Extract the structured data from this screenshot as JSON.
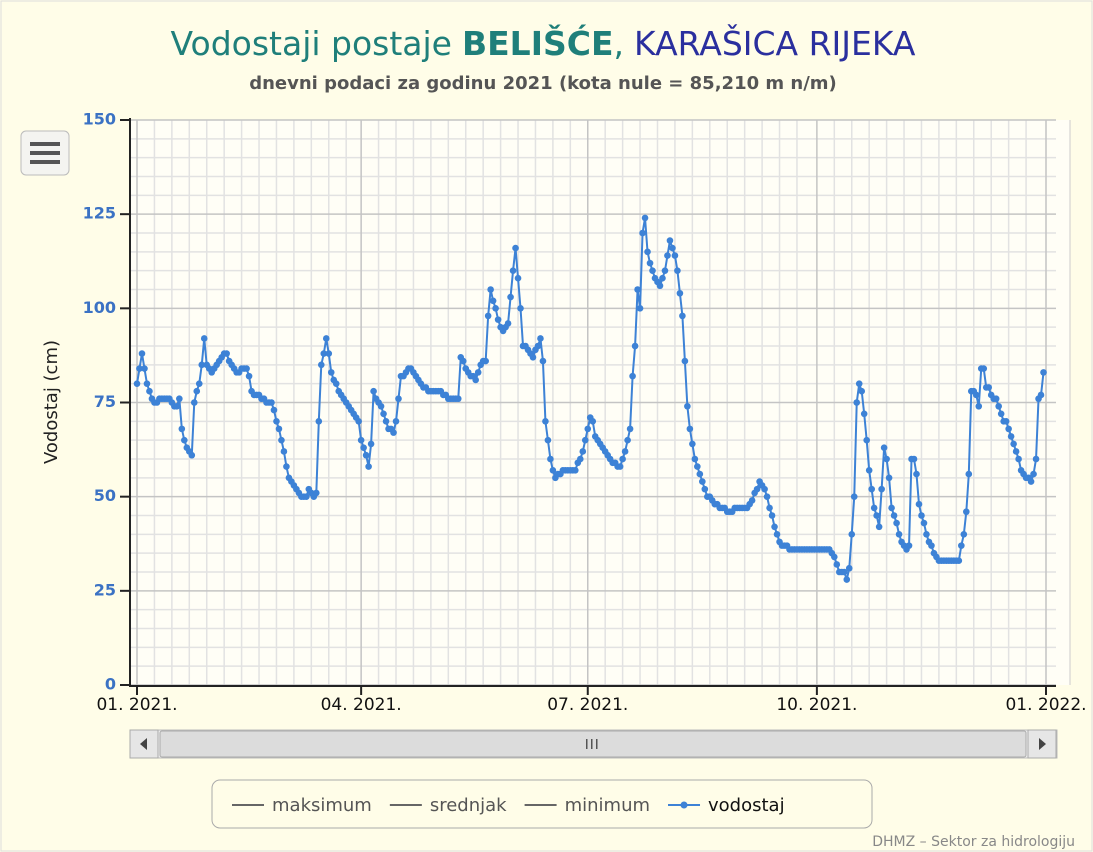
{
  "chart_data": {
    "type": "line",
    "title": {
      "lead": "Vodostaji postaje",
      "station": "BELIŠĆE",
      "separator": ",",
      "river": "KARAŠICA RIJEKA"
    },
    "subtitle": "dnevni podaci za godinu 2021 (kota nule = 85,210 m n/m)",
    "y_label": "Vodostaj (cm)",
    "credits": "DHMZ – Sektor za hidrologiju",
    "ylim": [
      0,
      150
    ],
    "yticks": [
      0,
      25,
      50,
      75,
      100,
      125,
      150
    ],
    "yminorticks": [
      5,
      10,
      15,
      20,
      30,
      35,
      40,
      45,
      55,
      60,
      65,
      70,
      80,
      85,
      90,
      95,
      105,
      110,
      115,
      120,
      130,
      135,
      140,
      145
    ],
    "xlim": [
      0,
      365
    ],
    "xticks": [
      {
        "value": 0,
        "label": "01. 2021."
      },
      {
        "value": 90,
        "label": "04. 2021."
      },
      {
        "value": 181,
        "label": "07. 2021."
      },
      {
        "value": 273,
        "label": "10. 2021."
      },
      {
        "value": 365,
        "label": "01. 2022."
      }
    ],
    "xminorticks": [
      7,
      14,
      21,
      28,
      35,
      42,
      49,
      56,
      63,
      70,
      77,
      84,
      97,
      104,
      111,
      118,
      125,
      132,
      139,
      146,
      153,
      160,
      167,
      174,
      188,
      195,
      202,
      209,
      216,
      223,
      230,
      237,
      244,
      251,
      258,
      265,
      280,
      287,
      294,
      301,
      308,
      315,
      322,
      329,
      336,
      343,
      350,
      357
    ],
    "grid": true,
    "series": [
      {
        "name": "maksimum",
        "color": "#666666",
        "values": null
      },
      {
        "name": "srednjak",
        "color": "#666666",
        "values": null
      },
      {
        "name": "minimum",
        "color": "#666666",
        "values": null
      },
      {
        "name": "vodostaj",
        "color": "#3d82d6",
        "values": [
          80,
          84,
          88,
          84,
          80,
          78,
          76,
          75,
          75,
          76,
          76,
          76,
          76,
          76,
          75,
          74,
          74,
          76,
          68,
          65,
          63,
          62,
          61,
          75,
          78,
          80,
          85,
          92,
          85,
          84,
          83,
          84,
          85,
          86,
          87,
          88,
          88,
          86,
          85,
          84,
          83,
          83,
          84,
          84,
          84,
          82,
          78,
          77,
          77,
          77,
          76,
          76,
          75,
          75,
          75,
          73,
          70,
          68,
          65,
          62,
          58,
          55,
          54,
          53,
          52,
          51,
          50,
          50,
          50,
          52,
          51,
          50,
          51,
          70,
          85,
          88,
          92,
          88,
          83,
          81,
          80,
          78,
          77,
          76,
          75,
          74,
          73,
          72,
          71,
          70,
          65,
          63,
          61,
          58,
          64,
          78,
          76,
          75,
          74,
          72,
          70,
          68,
          68,
          67,
          70,
          76,
          82,
          82,
          83,
          84,
          84,
          83,
          82,
          81,
          80,
          79,
          79,
          78,
          78,
          78,
          78,
          78,
          78,
          77,
          77,
          76,
          76,
          76,
          76,
          76,
          87,
          86,
          84,
          83,
          82,
          82,
          81,
          83,
          85,
          86,
          86,
          98,
          105,
          102,
          100,
          97,
          95,
          94,
          95,
          96,
          103,
          110,
          116,
          108,
          100,
          90,
          90,
          89,
          88,
          87,
          89,
          90,
          92,
          86,
          70,
          65,
          60,
          57,
          55,
          56,
          56,
          57,
          57,
          57,
          57,
          57,
          57,
          59,
          60,
          62,
          65,
          68,
          71,
          70,
          66,
          65,
          64,
          63,
          62,
          61,
          60,
          59,
          59,
          58,
          58,
          60,
          62,
          65,
          68,
          82,
          90,
          105,
          100,
          120,
          124,
          115,
          112,
          110,
          108,
          107,
          106,
          108,
          110,
          114,
          118,
          116,
          114,
          110,
          104,
          98,
          86,
          74,
          68,
          64,
          60,
          58,
          56,
          54,
          52,
          50,
          50,
          49,
          48,
          48,
          47,
          47,
          47,
          46,
          46,
          46,
          47,
          47,
          47,
          47,
          47,
          47,
          48,
          49,
          51,
          52,
          54,
          53,
          52,
          50,
          47,
          45,
          42,
          40,
          38,
          37,
          37,
          37,
          36,
          36,
          36,
          36,
          36,
          36,
          36,
          36,
          36,
          36,
          36,
          36,
          36,
          36,
          36,
          36,
          36,
          35,
          34,
          32,
          30,
          30,
          30,
          28,
          31,
          40,
          50,
          75,
          80,
          78,
          72,
          65,
          57,
          52,
          47,
          45,
          42,
          52,
          63,
          60,
          55,
          47,
          45,
          43,
          40,
          38,
          37,
          36,
          37,
          60,
          60,
          56,
          48,
          45,
          43,
          40,
          38,
          37,
          35,
          34,
          33,
          33,
          33,
          33,
          33,
          33,
          33,
          33,
          33,
          37,
          40,
          46,
          56,
          78,
          78,
          77,
          74,
          84,
          84,
          79,
          79,
          77,
          76,
          76,
          74,
          72,
          70,
          70,
          68,
          66,
          64,
          62,
          60,
          57,
          56,
          55,
          55,
          54,
          56,
          60,
          76,
          77,
          83
        ]
      }
    ]
  }
}
